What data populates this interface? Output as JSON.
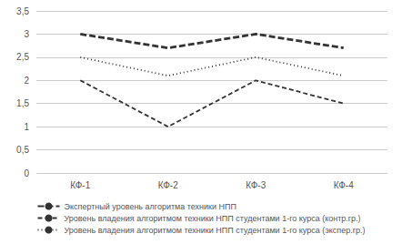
{
  "chart_data": {
    "type": "line",
    "categories": [
      "КФ-1",
      "КФ-2",
      "КФ-3",
      "КФ-4"
    ],
    "series": [
      {
        "name": "Экспертный уровень алгоритма техники НПП",
        "color": "#333333",
        "line_style": "longdash",
        "values": [
          3.0,
          2.7,
          3.0,
          2.7
        ]
      },
      {
        "name": "Уровень владения алгоритмом техники НПП студентами 1-го курса (контр.гр.)",
        "color": "#333333",
        "line_style": "dashed",
        "values": [
          2.0,
          1.0,
          2.0,
          1.5
        ]
      },
      {
        "name": "Уровень владения алгоритмом техники НПП студентами 1-го курса (экспер.гр.)",
        "color": "#333333",
        "line_style": "dotted",
        "values": [
          2.5,
          2.1,
          2.5,
          2.1
        ]
      }
    ],
    "ylim": [
      0,
      3.5
    ],
    "yticks": [
      0,
      {
        "value": 0.5,
        "label": "0,5"
      },
      1,
      {
        "value": 1.5,
        "label": "1,5"
      },
      2,
      {
        "value": 2.5,
        "label": "2,5"
      },
      3,
      {
        "value": 3.5,
        "label": "3,5"
      }
    ],
    "grid": true,
    "legend": "bottom"
  }
}
